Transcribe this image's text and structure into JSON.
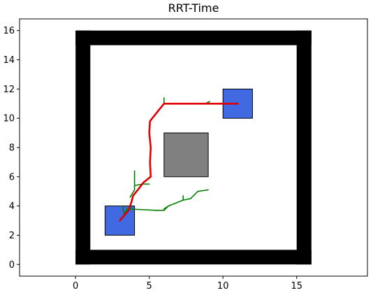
{
  "chart_data": {
    "type": "line",
    "title": "RRT-Time",
    "xlabel": "",
    "ylabel": "",
    "xlim": [
      -3.8,
      19.8
    ],
    "ylim": [
      -0.8,
      16.8
    ],
    "xticks": [
      0,
      5,
      10,
      15
    ],
    "yticks": [
      0,
      2,
      4,
      6,
      8,
      10,
      12,
      14,
      16
    ],
    "grid": false,
    "colors": {
      "wall": "#000000",
      "obstacle": "#808080",
      "start_goal": "#4169e1",
      "tree": "#008000",
      "path": "#e00000",
      "frame": "#000000"
    },
    "walls": [
      {
        "x0": 0,
        "y0": 0,
        "x1": 16,
        "y1": 1
      },
      {
        "x0": 0,
        "y0": 15,
        "x1": 16,
        "y1": 16
      },
      {
        "x0": 0,
        "y0": 0,
        "x1": 1,
        "y1": 16
      },
      {
        "x0": 15,
        "y0": 0,
        "x1": 16,
        "y1": 16
      }
    ],
    "obstacles": [
      {
        "x0": 6,
        "y0": 6,
        "x1": 9,
        "y1": 9
      }
    ],
    "regions": [
      {
        "role": "start",
        "x0": 2,
        "y0": 2,
        "x1": 4,
        "y1": 4
      },
      {
        "role": "goal",
        "x0": 10,
        "y0": 10,
        "x1": 12,
        "y1": 12
      }
    ],
    "tree_edges": [
      [
        [
          3,
          3
        ],
        [
          3.3,
          3.4
        ]
      ],
      [
        [
          3.3,
          3.4
        ],
        [
          3.5,
          3.8
        ]
      ],
      [
        [
          3.5,
          3.8
        ],
        [
          4.5,
          3.75
        ]
      ],
      [
        [
          4.5,
          3.75
        ],
        [
          5.5,
          3.7
        ]
      ],
      [
        [
          5.5,
          3.7
        ],
        [
          6,
          3.7
        ]
      ],
      [
        [
          6,
          3.7
        ],
        [
          6.3,
          4.0
        ]
      ],
      [
        [
          6.3,
          4.0
        ],
        [
          6.8,
          4.2
        ]
      ],
      [
        [
          6.8,
          4.2
        ],
        [
          7.3,
          4.4
        ]
      ],
      [
        [
          7.3,
          4.4
        ],
        [
          7.8,
          4.5
        ]
      ],
      [
        [
          7.8,
          4.5
        ],
        [
          8.3,
          5.0
        ]
      ],
      [
        [
          8.3,
          5.0
        ],
        [
          9.0,
          5.1
        ]
      ],
      [
        [
          6.3,
          4.0
        ],
        [
          6.0,
          3.8
        ]
      ],
      [
        [
          7.3,
          4.4
        ],
        [
          7.3,
          4.7
        ]
      ],
      [
        [
          3.3,
          3.4
        ],
        [
          3.2,
          4.0
        ]
      ],
      [
        [
          3.5,
          3.8
        ],
        [
          3.8,
          3.95
        ]
      ],
      [
        [
          4,
          5.1
        ],
        [
          4,
          6.4
        ]
      ],
      [
        [
          4,
          5.4
        ],
        [
          4.6,
          5.5
        ]
      ],
      [
        [
          4.6,
          5.5
        ],
        [
          5.0,
          5.5
        ]
      ],
      [
        [
          6,
          11
        ],
        [
          6.0,
          11.4
        ]
      ],
      [
        [
          8.8,
          11
        ],
        [
          9.1,
          11.15
        ]
      ],
      [
        [
          3.7,
          4.6
        ],
        [
          4.0,
          5.1
        ]
      ]
    ],
    "path": [
      [
        3,
        3
      ],
      [
        3.6,
        3.7
      ],
      [
        3.8,
        4.3
      ],
      [
        3.9,
        4.7
      ],
      [
        4.3,
        5.2
      ],
      [
        4.6,
        5.6
      ],
      [
        5.1,
        6.0
      ],
      [
        5.05,
        7.0
      ],
      [
        5.1,
        8.0
      ],
      [
        5.0,
        9.0
      ],
      [
        5.05,
        9.8
      ],
      [
        5.6,
        10.5
      ],
      [
        6.0,
        11.0
      ],
      [
        7.5,
        11.0
      ],
      [
        9.0,
        11.0
      ],
      [
        11,
        11
      ]
    ]
  }
}
